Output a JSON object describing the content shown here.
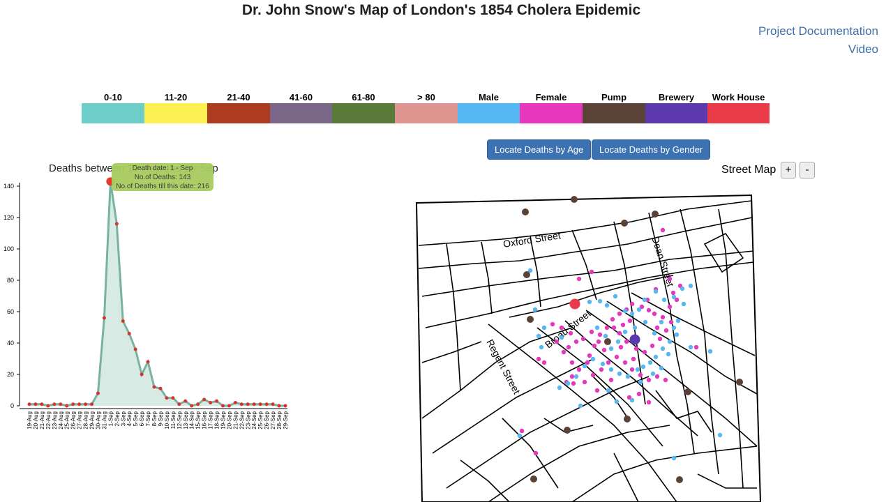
{
  "header": {
    "title": "Dr. John Snow's Map of London's 1854 Cholera Epidemic",
    "links": [
      "Project Documentation",
      "Video"
    ]
  },
  "legend": [
    {
      "label": "0-10",
      "color": "#6ccdc9"
    },
    {
      "label": "11-20",
      "color": "#fbef52"
    },
    {
      "label": "21-40",
      "color": "#ad3b20"
    },
    {
      "label": "41-60",
      "color": "#7b6888"
    },
    {
      "label": "61-80",
      "color": "#5a7a3a"
    },
    {
      "label": "> 80",
      "color": "#df9590"
    },
    {
      "label": "Male",
      "color": "#55b8f3"
    },
    {
      "label": "Female",
      "color": "#e637bd"
    },
    {
      "label": "Pump",
      "color": "#5a4236"
    },
    {
      "label": "Brewery",
      "color": "#5c3aad"
    },
    {
      "label": "Work House",
      "color": "#ea3b4a"
    }
  ],
  "controls": {
    "age_button": "Locate Deaths by Age",
    "gender_button": "Locate Deaths by Gender",
    "street_map_label": "Street Map",
    "zoom_in": "+",
    "zoom_out": "-"
  },
  "tooltip": {
    "line1": "Death date: 1 - Sep",
    "line2": "No.of Deaths: 143",
    "line3": "No.of Deaths till this date: 216"
  },
  "chart_data": {
    "type": "area",
    "title": "Deaths between 19-Aug and 29-Sep",
    "categories": [
      "19-Aug",
      "20-Aug",
      "21-Aug",
      "22-Aug",
      "23-Aug",
      "24-Aug",
      "25-Aug",
      "26-Aug",
      "27-Aug",
      "28-Aug",
      "29-Aug",
      "30-Aug",
      "31-Aug",
      "1-Sep",
      "2-Sep",
      "3-Sep",
      "4-Sep",
      "5-Sep",
      "6-Sep",
      "7-Sep",
      "8-Sep",
      "9-Sep",
      "10-Sep",
      "11-Sep",
      "12-Sep",
      "13-Sep",
      "14-Sep",
      "15-Sep",
      "16-Sep",
      "17-Sep",
      "18-Sep",
      "19-Sep",
      "20-Sep",
      "21-Sep",
      "22-Sep",
      "23-Sep",
      "24-Sep",
      "25-Sep",
      "26-Sep",
      "27-Sep",
      "28-Sep",
      "29-Sep"
    ],
    "values": [
      1,
      1,
      1,
      0,
      1,
      1,
      0,
      1,
      1,
      1,
      1,
      8,
      56,
      143,
      116,
      54,
      46,
      36,
      20,
      28,
      12,
      11,
      5,
      5,
      1,
      3,
      0,
      1,
      4,
      2,
      3,
      0,
      0,
      2,
      1,
      1,
      1,
      1,
      1,
      1,
      0,
      0
    ],
    "highlight": {
      "category": "1-Sep",
      "value": 143,
      "color": "#e8392f"
    },
    "ylim": [
      0,
      145
    ],
    "yticks": [
      0,
      20,
      40,
      60,
      80,
      100,
      120,
      140
    ],
    "line_color": "#78b2a0",
    "fill_color": "#d7ebe4",
    "point_color": "#d7362b"
  },
  "map": {
    "street_labels": [
      "Oxford Street",
      "Dean Street",
      "Broad Street",
      "Regent Street"
    ]
  }
}
